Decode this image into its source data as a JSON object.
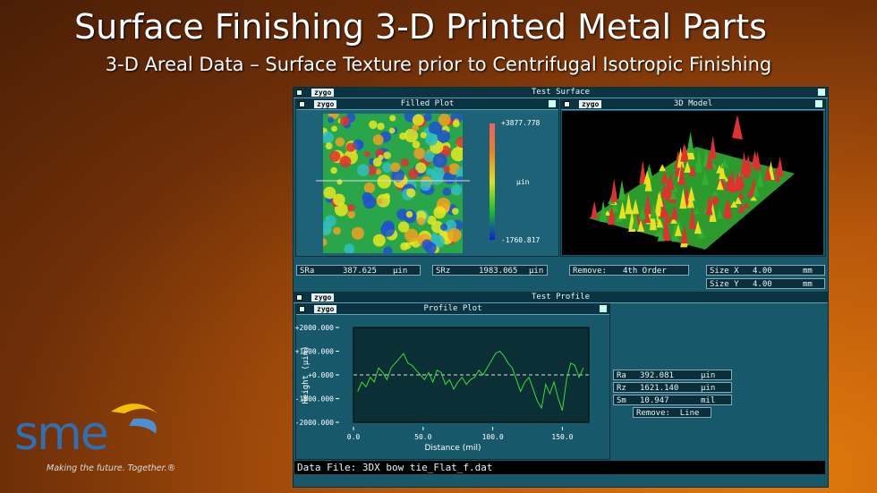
{
  "slide": {
    "title": "Surface Finishing 3-D Printed Metal Parts",
    "subtitle": "3-D Areal Data – Surface Texture prior to Centrifugal Isotropic Finishing",
    "logo": "sme",
    "tagline": "Making the future. Together.®"
  },
  "surface_window": {
    "title": "Test Surface",
    "brand": "zygo",
    "filled_plot": {
      "title": "Filled Plot",
      "brand": "zygo",
      "max": "+3877.778",
      "unit": "µin",
      "min": "-1760.817"
    },
    "model": {
      "title": "3D Model",
      "brand": "zygo"
    },
    "stats": [
      [
        "SRa",
        "387.625",
        "µin"
      ],
      [
        "SRz",
        "1983.065",
        "µin"
      ],
      [
        "Remove:",
        "4th Order"
      ],
      [
        "Size X",
        "4.00",
        "mm"
      ],
      [
        "Size Y",
        "4.00",
        "mm"
      ]
    ]
  },
  "profile_window": {
    "title": "Test Profile",
    "brand": "zygo",
    "plot_title": "Profile Plot",
    "plot_brand": "zygo",
    "stats": [
      [
        "Ra",
        "392.081",
        "µin"
      ],
      [
        "Rz",
        "1621.140",
        "µin"
      ],
      [
        "Sm",
        "10.947",
        "mil"
      ]
    ],
    "remove": "Remove:  Line",
    "data_file": "Data File: 3DX bow tie_Flat_f.dat"
  },
  "chart_data": {
    "type": "line",
    "x_label": "Distance (mil)",
    "y_label": "Height (µin)",
    "x": [
      3,
      6,
      9,
      12,
      15,
      18,
      21,
      24,
      27,
      30,
      33,
      36,
      39,
      42,
      45,
      48,
      51,
      54,
      57,
      60,
      63,
      66,
      69,
      72,
      75,
      78,
      81,
      84,
      87,
      90,
      93,
      96,
      99,
      102,
      105,
      108,
      111,
      114,
      117,
      120,
      123,
      126,
      129,
      132,
      135,
      138,
      141,
      144,
      147,
      150,
      153,
      156,
      159,
      162,
      165
    ],
    "values": [
      -700,
      -300,
      -500,
      -100,
      -300,
      300,
      100,
      -200,
      300,
      500,
      700,
      900,
      500,
      400,
      200,
      0,
      -200,
      100,
      -300,
      200,
      100,
      -400,
      -200,
      -600,
      -300,
      -100,
      -400,
      -200,
      -100,
      200,
      0,
      300,
      600,
      900,
      1000,
      800,
      500,
      300,
      -200,
      -700,
      -300,
      -100,
      -600,
      -1100,
      -1400,
      -400,
      -800,
      -300,
      -1000,
      -1500,
      -200,
      500,
      400,
      -100,
      300
    ],
    "color": "#3ddc3d",
    "xlim": [
      0,
      169
    ],
    "ylim": [
      -2000,
      2000
    ],
    "xticks": [
      {
        "value": 0,
        "label": "0.0"
      },
      {
        "value": 50,
        "label": "50.0"
      },
      {
        "value": 100,
        "label": "100.0"
      },
      {
        "value": 150,
        "label": "150.0"
      }
    ],
    "yticks": [
      {
        "value": -2000,
        "label": "-2000.000"
      },
      {
        "value": -1000,
        "label": "-1000.000"
      },
      {
        "value": 0,
        "label": "+0.000"
      },
      {
        "value": 1000,
        "label": "+1000.000"
      },
      {
        "value": 2000,
        "label": "+2000.000"
      }
    ]
  }
}
